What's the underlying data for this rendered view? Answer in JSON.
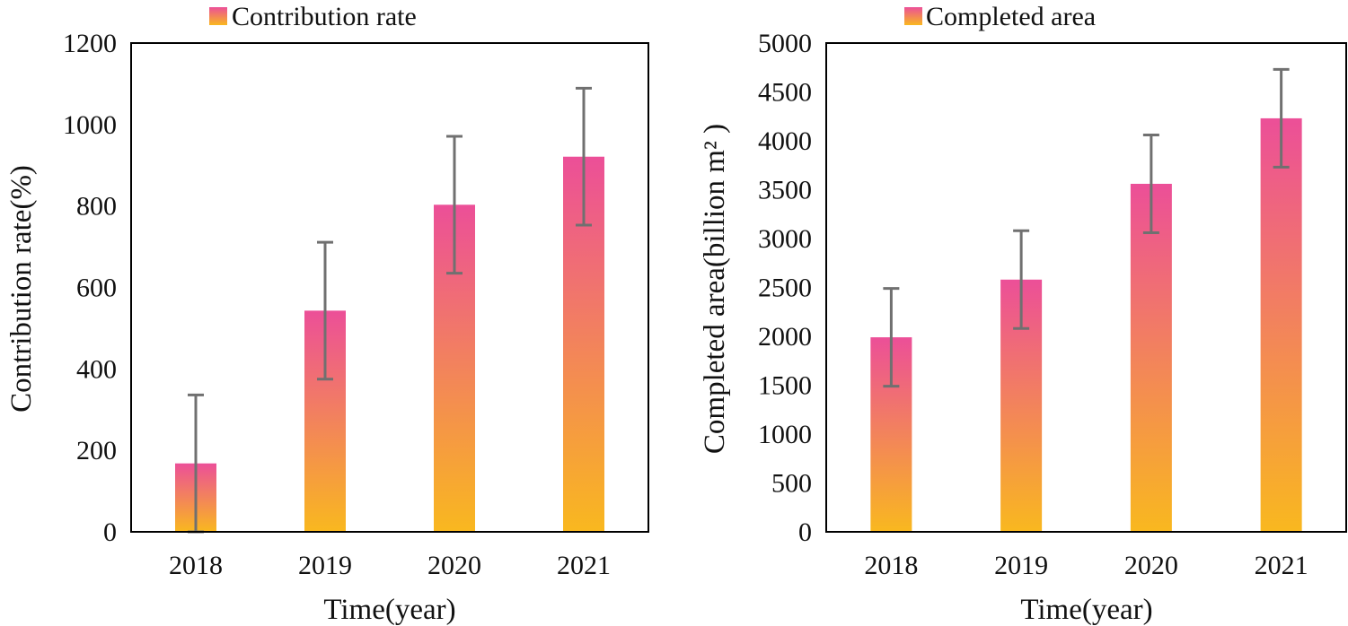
{
  "chart_data": [
    {
      "type": "bar",
      "title": "",
      "legend": {
        "label": "Contribution rate",
        "position": "top-center"
      },
      "categories": [
        "2018",
        "2019",
        "2020",
        "2021"
      ],
      "values": [
        168,
        543,
        803,
        921
      ],
      "error": [
        168,
        168,
        168,
        168
      ],
      "xlabel": "Time(year)",
      "ylabel": "Contribution rate(%)",
      "ylim": [
        0,
        1200
      ],
      "yticks": [
        "0",
        "200",
        "400",
        "600",
        "800",
        "1000",
        "1200"
      ],
      "grid": false
    },
    {
      "type": "bar",
      "title": "",
      "legend": {
        "label": "Completed area",
        "position": "top-center"
      },
      "categories": [
        "2018",
        "2019",
        "2020",
        "2021"
      ],
      "values": [
        1990,
        2580,
        3560,
        4230
      ],
      "error": [
        500,
        500,
        500,
        500
      ],
      "xlabel": "Time(year)",
      "ylabel": "Completed area(billion m² )",
      "ylim": [
        0,
        5000
      ],
      "yticks": [
        "0",
        "500",
        "1000",
        "1500",
        "2000",
        "2500",
        "3000",
        "3500",
        "4000",
        "4500",
        "5000"
      ],
      "grid": false
    }
  ],
  "colors": {
    "bar_top": "#ec4f98",
    "bar_bottom": "#f9b81f",
    "error_bar": "#707070",
    "axis": "#000000"
  }
}
